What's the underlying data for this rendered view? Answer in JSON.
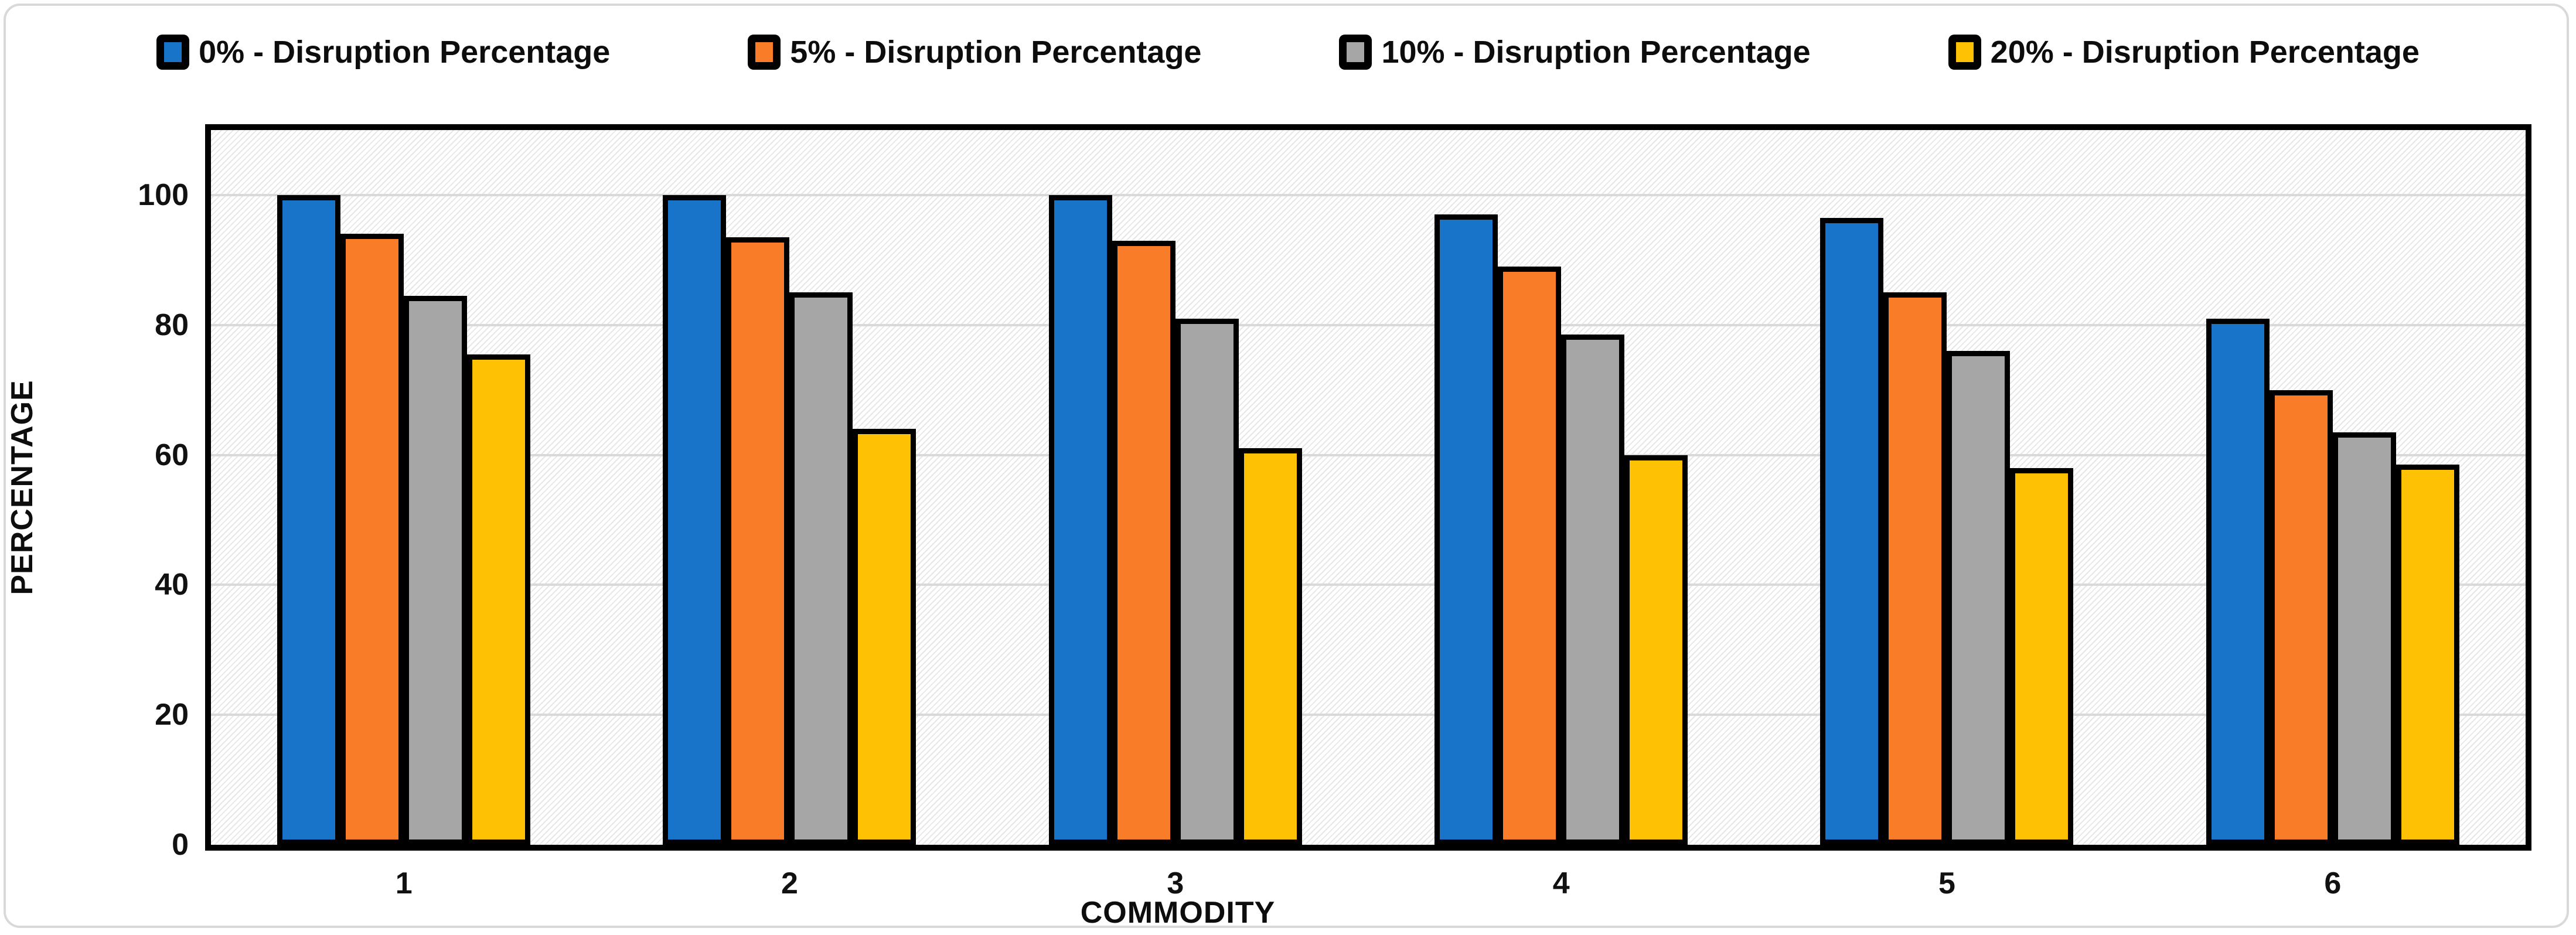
{
  "chart_data": {
    "type": "bar",
    "title": "",
    "xlabel": "COMMODITY",
    "ylabel": "PERCENTAGE",
    "categories": [
      "1",
      "2",
      "3",
      "4",
      "5",
      "6"
    ],
    "series": [
      {
        "name": "0% - Disruption Percentage",
        "color": "#1774C9",
        "values": [
          100,
          100,
          100,
          97,
          96.5,
          81
        ]
      },
      {
        "name": "5% - Disruption Percentage",
        "color": "#F97D28",
        "values": [
          94,
          93.5,
          93,
          89,
          85,
          70
        ]
      },
      {
        "name": "10% - Disruption Percentage",
        "color": "#A6A6A6",
        "values": [
          84.5,
          85,
          81,
          78.5,
          76,
          63.5
        ]
      },
      {
        "name": "20% - Disruption Percentage",
        "color": "#FFC103",
        "values": [
          75.5,
          64,
          61,
          60,
          58,
          58.5
        ]
      }
    ],
    "ylim": [
      0,
      110
    ],
    "yticks": [
      0,
      20,
      40,
      60,
      80,
      100
    ],
    "grid": true,
    "legend_position": "top",
    "plot_background": "light-upward-diagonal-hatch"
  },
  "colors": {
    "bar_border": "#000000",
    "plot_border": "#000000",
    "gridline": "#D9D9D9",
    "hatch_line": "#E7E7E7",
    "frame_border": "#D9D9D9",
    "text": "#0D0D0D"
  }
}
